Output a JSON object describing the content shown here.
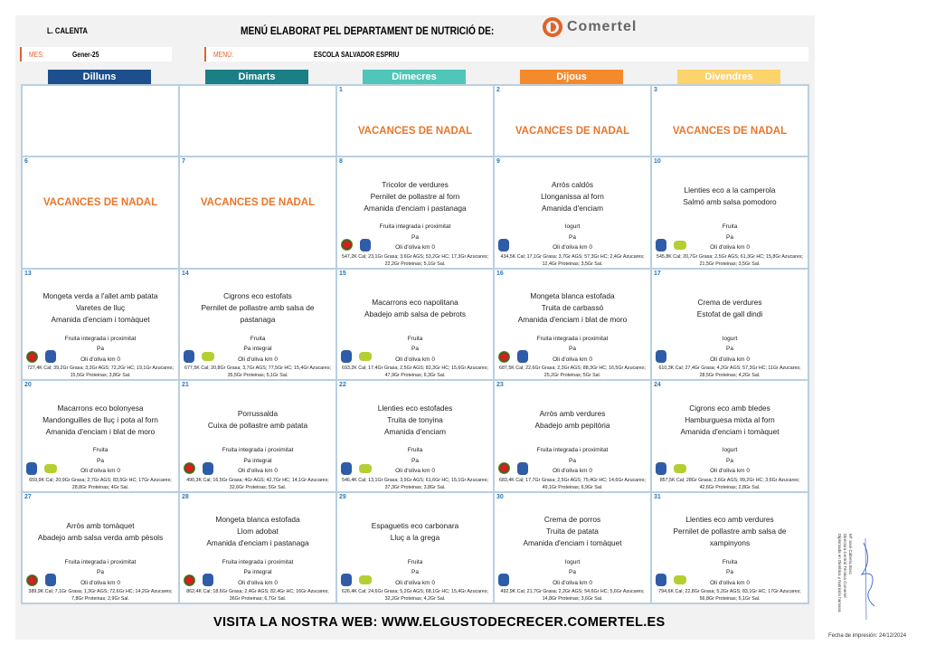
{
  "header": {
    "line": "L. CALENTA",
    "title": "MENÚ ELABORAT PEL DEPARTAMENT DE NUTRICIÓ DE:",
    "logo": "Comertel",
    "mes_label": "MES:",
    "mes_value": "Gener-25",
    "menu_label": "MENÚ:",
    "menu_value": "ESCOLA SALVADOR ESPRIU"
  },
  "days": [
    {
      "label": "Dilluns",
      "color": "#1d4f8c"
    },
    {
      "label": "Dimarts",
      "color": "#1b7f85"
    },
    {
      "label": "Dimecres",
      "color": "#4fc6b8"
    },
    {
      "label": "Dijous",
      "color": "#f58a2c"
    },
    {
      "label": "Divendres",
      "color": "#fdd36b"
    }
  ],
  "icon_legend": {
    "red": "fruita-integrada-icon",
    "blue": "km0-icon",
    "green": "eco-icon"
  },
  "cells": [
    {
      "day": "",
      "empty": true
    },
    {
      "day": "",
      "empty": true
    },
    {
      "day": "1",
      "vacances": "VACANCES DE NADAL"
    },
    {
      "day": "2",
      "vacances": "VACANCES DE NADAL"
    },
    {
      "day": "3",
      "vacances": "VACANCES DE NADAL"
    },
    {
      "day": "6",
      "vacances": "VACANCES DE NADAL"
    },
    {
      "day": "7",
      "vacances": "VACANCES DE NADAL"
    },
    {
      "day": "8",
      "dishes": [
        "Tricolor de verdures",
        "Pernilet de pollastre al forn",
        "Amanida d'enciam i pastanaga"
      ],
      "extras": [
        "Fruita integrada i proximitat",
        "Pa",
        "Oli d'oliva km 0"
      ],
      "nutrition": "547,2K Cal; 23,1Gr Grasa; 3,6Gr AGS; 53,2Gr HC; 17,3Gr Azucares; 22,2Gr Proteinas; 5,1Gr Sal.",
      "icons": [
        "red",
        "blue"
      ]
    },
    {
      "day": "9",
      "dishes": [
        "Arròs caldós",
        "Llonganissa al forn",
        "Amanida d'enciam"
      ],
      "extras": [
        "Iogurt",
        "Pa",
        "Oli d'oliva km 0"
      ],
      "nutrition": "434,5K Cal; 17,1Gr Grasa; 3,7Gr AGS; 57,3Gr HC; 2,4Gr Azucares; 12,4Gr Proteinas; 3,5Gr Sal.",
      "icons": [
        "blue"
      ]
    },
    {
      "day": "10",
      "dishes": [
        "Llenties eco a la camperola",
        "Salmó amb salsa pomodoro"
      ],
      "extras": [
        "Fruita",
        "Pa",
        "Oli d'oliva km 0"
      ],
      "nutrition": "545,8K Cal; 20,7Gr Grasa; 2,5Gr AGS; 61,3Gr HC; 15,8Gr Azucares; 21,5Gr Proteinas; 3,5Gr Sal.",
      "icons": [
        "blue",
        "green"
      ]
    },
    {
      "day": "13",
      "dishes": [
        "Mongeta verda a l'allet amb patata",
        "Varetes de lluç",
        "Amanida d'enciam i tomàquet"
      ],
      "extras": [
        "Fruita integrada i proximitat",
        "Pa",
        "Oli d'oliva km 0"
      ],
      "nutrition": "727,4K Cal; 39,2Gr Grasa; 3,3Gr AGS; 72,2Gr HC; 19,1Gr Azucares; 15,5Gr Proteinas; 3,8Gr Sal.",
      "icons": [
        "red",
        "blue"
      ]
    },
    {
      "day": "14",
      "dishes": [
        "Cigrons eco estofats",
        "Pernilet de pollastre amb salsa de pastanaga"
      ],
      "extras": [
        "Fruita",
        "Pa integral",
        "Oli d'oliva km 0"
      ],
      "nutrition": "677,5K Cal; 20,8Gr Grasa; 3,7Gr AGS; 77,5Gr HC; 15,4Gr Azucares; 35,5Gr Proteinas; 5,1Gr Sal.",
      "icons": [
        "blue",
        "green"
      ]
    },
    {
      "day": "15",
      "dishes": [
        "Macarrons eco napolitana",
        "Abadejo amb salsa de pebrots"
      ],
      "extras": [
        "Fruita",
        "Pa",
        "Oli d'oliva km 0"
      ],
      "nutrition": "693,2K Cal; 17,4Gr Grasa; 2,5Gr AGS; 82,3Gr HC; 15,6Gr Azucares; 47,9Gr Proteinas; 6,3Gr Sal.",
      "icons": [
        "blue",
        "green"
      ]
    },
    {
      "day": "16",
      "dishes": [
        "Mongeta blanca estofada",
        "Truita de carbassó",
        "Amanida d'enciam i blat de moro"
      ],
      "extras": [
        "Fruita integrada i proximitat",
        "Pa",
        "Oli d'oliva km 0"
      ],
      "nutrition": "687,5K Cal; 22,6Gr Grasa; 2,3Gr AGS; 88,3Gr HC; 16,5Gr Azucares; 25,2Gr Proteinas; 5Gr Sal.",
      "icons": [
        "red",
        "blue"
      ]
    },
    {
      "day": "17",
      "dishes": [
        "Crema de verdures",
        "Estofat de gall dindi"
      ],
      "extras": [
        "Iogurt",
        "Pa",
        "Oli d'oliva km 0"
      ],
      "nutrition": "610,3K Cal; 27,4Gr Grasa; 4,2Gr AGS; 57,3Gr HC; 11Gr Azucares; 28,5Gr Proteinas; 4,2Gr Sal.",
      "icons": [
        "blue"
      ]
    },
    {
      "day": "20",
      "dishes": [
        "Macarrons eco bolonyesa",
        "Mandonguilles de lluç i pota al forn",
        "Amanida d'enciam i blat de moro"
      ],
      "extras": [
        "Fruita",
        "Pa",
        "Oli d'oliva km 0"
      ],
      "nutrition": "659,9K Cal; 20,9Gr Grasa; 2,7Gr AGS; 83,5Gr HC; 17Gr Azucares; 28,8Gr Proteinas; 4Gr Sal.",
      "icons": [
        "blue",
        "green"
      ]
    },
    {
      "day": "21",
      "dishes": [
        "Porrussalda",
        "Cuixa de pollastre amb patata"
      ],
      "extras": [
        "Fruita integrada i proximitat",
        "Pa integral",
        "Oli d'oliva km 0"
      ],
      "nutrition": "490,3K Cal; 16,5Gr Grasa; 4Gr AGS; 42,7Gr HC; 14,1Gr Azucares; 32,6Gr Proteinas; 5Gr Sal.",
      "icons": [
        "red",
        "blue"
      ]
    },
    {
      "day": "22",
      "dishes": [
        "Llenties eco estofades",
        "Truita de tonyina",
        "Amanida d'enciam"
      ],
      "extras": [
        "Fruita",
        "Pa",
        "Oli d'oliva km 0"
      ],
      "nutrition": "546,4K Cal; 13,1Gr Grasa; 3,9Gr AGS; 61,6Gr HC; 15,1Gr Azucares; 37,3Gr Proteinas; 3,8Gr Sal.",
      "icons": [
        "blue",
        "green"
      ]
    },
    {
      "day": "23",
      "dishes": [
        "Arròs amb verdures",
        "Abadejo amb pepitòria"
      ],
      "extras": [
        "Fruita integrada i proximitat",
        "Pa",
        "Oli d'oliva km 0"
      ],
      "nutrition": "683,4K Cal; 17,7Gr Grasa; 2,5Gr AGS; 75,4Gr HC; 14,6Gr Azucares; 49,1Gr Proteinas; 6,9Gr Sal.",
      "icons": [
        "red",
        "blue"
      ]
    },
    {
      "day": "24",
      "dishes": [
        "Cigrons eco amb bledes",
        "Hamburguesa mixta al forn",
        "Amanida d'enciam i tomàquet"
      ],
      "extras": [
        "Iogurt",
        "Pa",
        "Oli d'oliva km 0"
      ],
      "nutrition": "857,5K Cal; 28Gr Grasa; 2,6Gr AGS; 99,2Gr HC; 3,6Gr Azucares; 42,6Gr Proteinas; 2,8Gr Sal.",
      "icons": [
        "blue",
        "green"
      ]
    },
    {
      "day": "27",
      "dishes": [
        "Arròs amb tomàquet",
        "Abadejo amb salsa verda amb pèsols"
      ],
      "extras": [
        "Fruita integrada i proximitat",
        "Pa",
        "Oli d'oliva km 0"
      ],
      "nutrition": "389,9K Cal; 7,1Gr Grasa; 1,3Gr AGS; 72,6Gr HC; 14,2Gr Azucares; 7,8Gr Proteinas; 2,9Gr Sal.",
      "icons": [
        "red",
        "blue"
      ]
    },
    {
      "day": "28",
      "dishes": [
        "Mongeta blanca estofada",
        "Llom adobat",
        "Amanida d'enciam i pastanaga"
      ],
      "extras": [
        "Fruita integrada i proximitat",
        "Pa integral",
        "Oli d'oliva km 0"
      ],
      "nutrition": "862,4K Cal; 18,6Gr Grasa; 2,4Gr AGS; 82,4Gr HC; 16Gr Azucares; 36Gr Proteinas; 6,7Gr Sal.",
      "icons": [
        "red",
        "blue"
      ]
    },
    {
      "day": "29",
      "dishes": [
        "Espaguetis eco carbonara",
        "Lluç a la grega"
      ],
      "extras": [
        "Fruita",
        "Pa",
        "Oli d'oliva km 0"
      ],
      "nutrition": "626,4K Cal; 24,6Gr Grasa; 5,2Gr AGS; 68,1Gr HC; 15,4Gr Azucares; 32,2Gr Proteinas; 4,2Gr Sal.",
      "icons": [
        "blue",
        "green"
      ]
    },
    {
      "day": "30",
      "dishes": [
        "Crema de porros",
        "Truita de patata",
        "Amanida d'enciam i tomàquet"
      ],
      "extras": [
        "Iogurt",
        "Pa",
        "Oli d'oliva km 0"
      ],
      "nutrition": "492,9K Cal; 21,7Gr Grasa; 2,2Gr AGS; 54,6Gr HC; 5,6Gr Azucares; 14,8Gr Proteinas; 3,6Gr Sal.",
      "icons": [
        "blue"
      ]
    },
    {
      "day": "31",
      "dishes": [
        "Llenties eco amb verdures",
        "Pernilet de pollastre amb salsa de xampinyons"
      ],
      "extras": [
        "Fruita",
        "Pa",
        "Oli d'oliva km 0"
      ],
      "nutrition": "794,6K Cal; 22,8Gr Grasa; 5,2Gr AGS; 83,1Gr HC; 17Gr Azucares; 56,8Gr Proteinas; 5,1Gr Sal.",
      "icons": [
        "blue",
        "green"
      ]
    }
  ],
  "footer": {
    "web": "VISITA LA NOSTRA WEB: WWW.ELGUSTODECRECER.COMERTEL.ES",
    "signature": [
      "Mª José Cabrera Bosc",
      "Directora Central Técnica Comertel",
      "Diplomada en Dietética y Nutrición humana"
    ],
    "fecha": "Fecha de impresión: 24/12/2024"
  }
}
